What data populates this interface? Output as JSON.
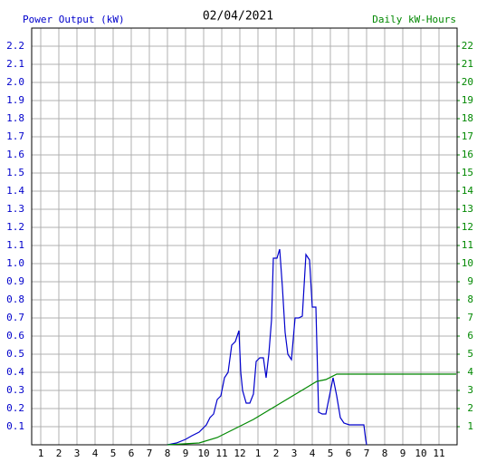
{
  "chart_data": {
    "type": "line",
    "title": "02/04/2021",
    "ylabel": "Power Output (kW)",
    "y2label": "Daily kW-Hours",
    "xlim": [
      0.5,
      24
    ],
    "xticks": [
      1,
      2,
      3,
      4,
      5,
      6,
      7,
      8,
      9,
      10,
      11,
      12,
      {
        "value": 13,
        "label": "1"
      },
      {
        "value": 14,
        "label": "2"
      },
      {
        "value": 15,
        "label": "3"
      },
      {
        "value": 16,
        "label": "4"
      },
      {
        "value": 17,
        "label": "5"
      },
      {
        "value": 18,
        "label": "6"
      },
      {
        "value": 19,
        "label": "7"
      },
      {
        "value": 20,
        "label": "8"
      },
      {
        "value": 21,
        "label": "9"
      },
      {
        "value": 22,
        "label": "10"
      },
      {
        "value": 23,
        "label": "11"
      }
    ],
    "ylim": [
      0,
      2.3
    ],
    "yticks": [
      0.1,
      0.2,
      0.3,
      0.4,
      0.5,
      0.6,
      0.7,
      0.8,
      0.9,
      {
        "value": 1,
        "label": "1.0"
      },
      1.1,
      1.2,
      1.3,
      1.4,
      1.5,
      1.6,
      1.7,
      1.8,
      1.9,
      {
        "value": 2,
        "label": "2.0"
      },
      2.1,
      2.2
    ],
    "y2lim": [
      0,
      23
    ],
    "y2ticks": [
      1,
      2,
      3,
      4,
      5,
      6,
      7,
      8,
      9,
      10,
      11,
      12,
      13,
      14,
      15,
      16,
      17,
      18,
      19,
      20,
      21,
      22
    ],
    "grid": true,
    "series": [
      {
        "color": "#0000cc",
        "axis": "y",
        "x": [
          8.0,
          8.5,
          9.0,
          9.35,
          9.75,
          10.15,
          10.35,
          10.55,
          10.75,
          10.95,
          11.15,
          11.35,
          11.55,
          11.75,
          11.95,
          12.05,
          12.15,
          12.35,
          12.55,
          12.75,
          12.9,
          13.1,
          13.3,
          13.45,
          13.6,
          13.75,
          13.85,
          14.05,
          14.2,
          14.35,
          14.5,
          14.65,
          14.85,
          15.05,
          15.25,
          15.45,
          15.65,
          15.85,
          16.0,
          16.2,
          16.35,
          16.55,
          16.75,
          16.95,
          17.15,
          17.35,
          17.55,
          17.75,
          18.05,
          18.5,
          18.85,
          18.95,
          19.0
        ],
        "values": [
          0,
          0.01,
          0.03,
          0.05,
          0.07,
          0.11,
          0.15,
          0.17,
          0.25,
          0.27,
          0.37,
          0.4,
          0.55,
          0.57,
          0.63,
          0.4,
          0.3,
          0.23,
          0.23,
          0.28,
          0.46,
          0.48,
          0.48,
          0.37,
          0.5,
          0.69,
          1.03,
          1.03,
          1.08,
          0.87,
          0.62,
          0.5,
          0.47,
          0.7,
          0.7,
          0.71,
          1.05,
          1.02,
          0.76,
          0.76,
          0.18,
          0.17,
          0.17,
          0.27,
          0.37,
          0.27,
          0.15,
          0.12,
          0.11,
          0.11,
          0.11,
          0.03,
          0
        ]
      },
      {
        "color": "#008800",
        "axis": "y2",
        "x": [
          8.0,
          9.75,
          10.75,
          11.75,
          12.75,
          13.75,
          14.75,
          15.75,
          16.25,
          16.75,
          17.35,
          23.95
        ],
        "values": [
          0,
          0.1,
          0.4,
          0.9,
          1.4,
          2.0,
          2.6,
          3.2,
          3.5,
          3.6,
          3.9,
          3.9
        ]
      }
    ]
  }
}
